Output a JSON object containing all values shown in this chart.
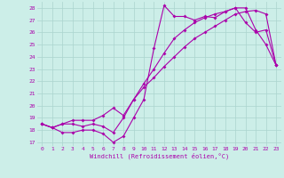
{
  "xlabel": "Windchill (Refroidissement éolien,°C)",
  "background_color": "#cceee8",
  "grid_color": "#aad4ce",
  "line_color": "#aa00aa",
  "xlim": [
    -0.5,
    23.5
  ],
  "ylim": [
    16.7,
    28.5
  ],
  "xticks": [
    0,
    1,
    2,
    3,
    4,
    5,
    6,
    7,
    8,
    9,
    10,
    11,
    12,
    13,
    14,
    15,
    16,
    17,
    18,
    19,
    20,
    21,
    22,
    23
  ],
  "yticks": [
    17,
    18,
    19,
    20,
    21,
    22,
    23,
    24,
    25,
    26,
    27,
    28
  ],
  "line1_x": [
    0,
    1,
    2,
    3,
    4,
    5,
    6,
    7,
    8,
    9,
    10,
    11,
    12,
    13,
    14,
    15,
    16,
    17,
    18,
    19,
    20,
    21,
    22,
    23
  ],
  "line1_y": [
    18.5,
    18.2,
    17.8,
    17.8,
    18.0,
    18.0,
    17.7,
    17.0,
    17.5,
    19.0,
    20.5,
    24.7,
    28.2,
    27.3,
    27.3,
    27.0,
    27.3,
    27.2,
    27.7,
    28.0,
    28.0,
    26.2,
    25.0,
    23.3
  ],
  "line2_x": [
    0,
    1,
    2,
    3,
    4,
    5,
    6,
    7,
    8,
    9,
    10,
    11,
    12,
    13,
    14,
    15,
    16,
    17,
    18,
    19,
    20,
    21,
    22,
    23
  ],
  "line2_y": [
    18.5,
    18.2,
    18.5,
    18.8,
    18.8,
    18.8,
    19.2,
    19.8,
    19.2,
    20.5,
    21.8,
    23.0,
    24.3,
    25.5,
    26.2,
    26.8,
    27.2,
    27.5,
    27.7,
    28.0,
    26.8,
    26.0,
    26.2,
    23.3
  ],
  "line3_x": [
    0,
    1,
    2,
    3,
    4,
    5,
    6,
    7,
    8,
    9,
    10,
    11,
    12,
    13,
    14,
    15,
    16,
    17,
    18,
    19,
    20,
    21,
    22,
    23
  ],
  "line3_y": [
    18.5,
    18.2,
    18.5,
    18.5,
    18.3,
    18.5,
    18.3,
    17.8,
    19.0,
    20.5,
    21.5,
    22.3,
    23.2,
    24.0,
    24.8,
    25.5,
    26.0,
    26.5,
    27.0,
    27.5,
    27.7,
    27.8,
    27.5,
    23.3
  ]
}
